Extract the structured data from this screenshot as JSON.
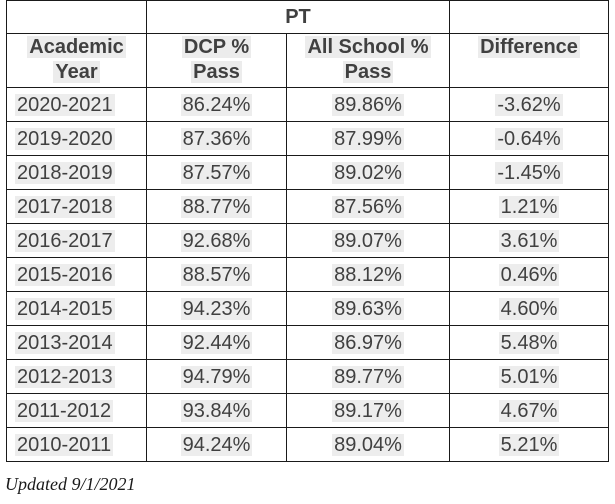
{
  "table": {
    "title": "PT",
    "headers": [
      [
        "Academic",
        "Year"
      ],
      [
        "DCP %",
        "Pass"
      ],
      [
        "All School %",
        "Pass"
      ],
      [
        "Difference",
        ""
      ]
    ],
    "rows": [
      [
        "2020-2021",
        "86.24%",
        "89.86%",
        "-3.62%"
      ],
      [
        "2019-2020",
        "87.36%",
        "87.99%",
        "-0.64%"
      ],
      [
        "2018-2019",
        "87.57%",
        "89.02%",
        "-1.45%"
      ],
      [
        "2017-2018",
        "88.77%",
        "87.56%",
        "1.21%"
      ],
      [
        "2016-2017",
        "92.68%",
        "89.07%",
        "3.61%"
      ],
      [
        "2015-2016",
        "88.57%",
        "88.12%",
        "0.46%"
      ],
      [
        "2014-2015",
        "94.23%",
        "89.63%",
        "4.60%"
      ],
      [
        "2013-2014",
        "92.44%",
        "86.97%",
        "5.48%"
      ],
      [
        "2012-2013",
        "94.79%",
        "89.77%",
        "5.01%"
      ],
      [
        "2011-2012",
        "93.84%",
        "89.17%",
        "4.67%"
      ],
      [
        "2010-2011",
        "94.24%",
        "89.04%",
        "5.21%"
      ]
    ]
  },
  "footnote": "Updated 9/1/2021"
}
